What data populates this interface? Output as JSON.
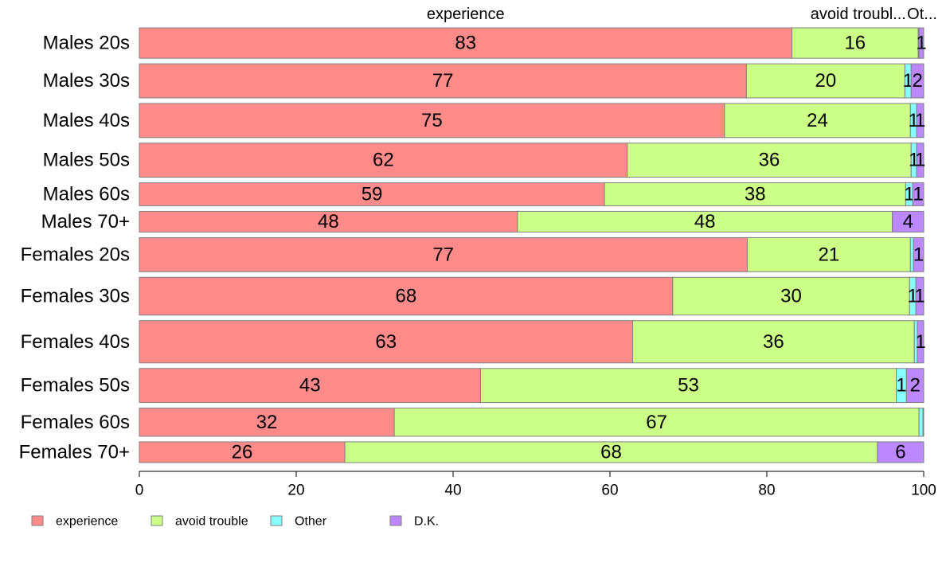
{
  "chart_data": {
    "type": "bar",
    "orientation": "horizontal",
    "stacked": true,
    "xlim": [
      0,
      100
    ],
    "x_ticks": [
      0,
      20,
      40,
      60,
      80,
      100
    ],
    "top_labels": [
      "experience",
      "avoid troubl...",
      "Ot..."
    ],
    "legend_position": "bottom-left",
    "categories": [
      "Males 20s",
      "Males 30s",
      "Males 40s",
      "Males 50s",
      "Males 60s",
      "Males 70+",
      "Females 20s",
      "Females 30s",
      "Females 40s",
      "Females 50s",
      "Females 60s",
      "Females 70+"
    ],
    "row_sizes": [
      41,
      46,
      46,
      46,
      31,
      28,
      46,
      51,
      57,
      46,
      38,
      28
    ],
    "series": [
      {
        "name": "experience",
        "color": "#FF8A8A",
        "values": [
          83.2,
          77.4,
          74.6,
          62.2,
          59.3,
          48.2,
          77.5,
          68.0,
          62.9,
          43.5,
          32.5,
          26.2
        ],
        "labels": [
          "83",
          "77",
          "75",
          "62",
          "59",
          "48",
          "77",
          "68",
          "63",
          "43",
          "32",
          "26"
        ]
      },
      {
        "name": "avoid trouble",
        "color": "#CCFF88",
        "values": [
          16.1,
          20.2,
          23.7,
          36.2,
          38.4,
          47.8,
          20.8,
          30.2,
          35.9,
          53.0,
          66.9,
          67.9
        ],
        "labels": [
          "16",
          "20",
          "24",
          "36",
          "38",
          "48",
          "21",
          "30",
          "36",
          "53",
          "67",
          "68"
        ]
      },
      {
        "name": "Other",
        "color": "#88FFFF",
        "values": [
          0.1,
          0.8,
          0.8,
          0.7,
          0.9,
          0.0,
          0.4,
          0.8,
          0.4,
          1.3,
          0.5,
          0.0
        ],
        "labels": [
          "",
          "1",
          "1",
          "1",
          "1",
          "",
          "",
          "1",
          "",
          "1",
          "",
          ""
        ]
      },
      {
        "name": "D.K.",
        "color": "#BB88FF",
        "values": [
          0.6,
          1.6,
          0.9,
          0.9,
          1.4,
          4.0,
          1.3,
          1.0,
          0.8,
          2.2,
          0.1,
          5.9
        ],
        "labels": [
          "1",
          "2",
          "1",
          "1",
          "1",
          "4",
          "1",
          "1",
          "1",
          "2",
          "",
          "6"
        ]
      }
    ]
  }
}
